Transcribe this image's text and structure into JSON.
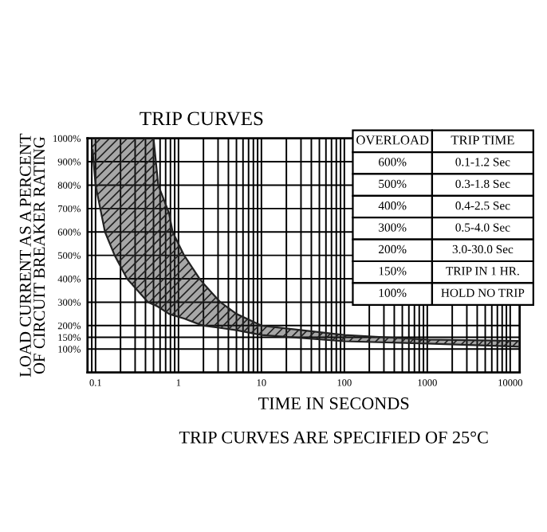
{
  "chart_data": {
    "type": "line",
    "title": "TRIP CURVES",
    "xlabel": "TIME IN SECONDS",
    "ylabel": "LOAD CURRENT AS A PERCENT\nOF CIRCUIT BREAKER RATING",
    "series": [
      {
        "color": "#222222",
        "x": [
          0.092,
          0.1,
          0.13,
          0.17,
          0.24,
          0.43,
          0.5,
          0.57,
          0.77,
          0.85,
          1.17,
          1.8,
          2,
          3.2,
          5,
          10,
          100,
          1000,
          10000,
          13000
        ],
        "values": [
          950,
          800,
          600,
          500,
          400,
          300,
          290,
          280,
          250,
          245,
          230,
          205,
          200,
          190,
          180,
          160,
          133,
          123,
          111,
          110
        ]
      },
      {
        "color": "#222222",
        "x": [
          0.092,
          0.1,
          0.13,
          0.17,
          0.24,
          0.43,
          0.5,
          0.57,
          0.77,
          0.85,
          1.17,
          1.8,
          2,
          3.2,
          5,
          10,
          100,
          1000,
          10000,
          13000
        ],
        "values": [
          1000,
          1000,
          1000,
          1000,
          1000,
          1000,
          1000,
          800,
          680,
          600,
          500,
          400,
          380,
          300,
          250,
          200,
          160,
          140,
          135,
          134
        ],
        "lower": [
          950,
          800,
          600,
          500,
          400,
          300,
          290,
          280,
          250,
          245,
          230,
          205,
          200,
          190,
          180,
          160,
          133,
          123,
          111,
          110
        ],
        "upper": [
          1000,
          1000,
          1000,
          1000,
          1000,
          1000,
          1000,
          800,
          680,
          600,
          500,
          400,
          380,
          300,
          250,
          200,
          160,
          140,
          135,
          134
        ]
      }
    ],
    "log": "x",
    "xlim": [
      0.08,
      13000
    ],
    "xticks": [
      0.1,
      1,
      10,
      100,
      1000,
      10000
    ],
    "ylim": [
      0,
      1000
    ],
    "yticks": [
      {
        "value": 100,
        "label": "100%"
      },
      {
        "value": 150,
        "label": "150%"
      },
      {
        "value": 200,
        "label": "200%"
      },
      {
        "value": 300,
        "label": "300%"
      },
      {
        "value": 400,
        "label": "400%"
      },
      {
        "value": 500,
        "label": "500%"
      },
      {
        "value": 600,
        "label": "600%"
      },
      {
        "value": 700,
        "label": "700%"
      },
      {
        "value": 800,
        "label": "800%"
      },
      {
        "value": 900,
        "label": "900%"
      },
      {
        "value": 1000,
        "label": "1000%"
      }
    ],
    "grid": true,
    "annotations": [
      "OVERLOAD",
      "TRIP TIME",
      "600%",
      "0.1-1.2 Sec",
      "500%",
      "0.3-1.8 Sec",
      "400%",
      "0.4-2.5 Sec",
      "300%",
      "0.5-4.0 Sec",
      "200%",
      "3.0-30.0 Sec",
      "150%",
      "TRIP IN 1 HR.",
      "100%",
      "HOLD NO TRIP",
      "TRIP CURVES ARE SPECIFIED OF 25°C"
    ]
  }
}
